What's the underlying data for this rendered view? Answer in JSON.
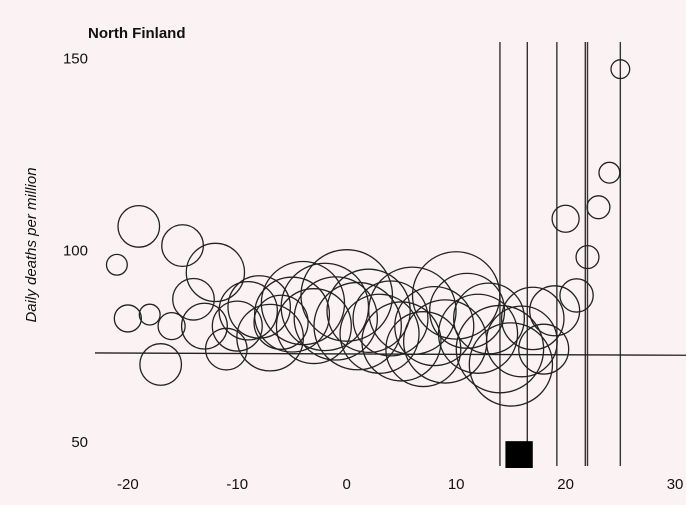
{
  "chart_data": {
    "type": "scatter",
    "title": "North Finland",
    "ylabel": "Daily deaths per million",
    "xlabel": "",
    "xlim": [
      -23,
      31
    ],
    "ylim": [
      43,
      152
    ],
    "x_ticks": [
      -20,
      -10,
      0,
      10,
      20,
      30
    ],
    "y_ticks": [
      50,
      100,
      150
    ],
    "grid": false,
    "colors": {
      "ink": "#222222",
      "background": "#fbf3f3",
      "bar": "#000000"
    },
    "baseline_y": 73,
    "vertical_lines_x": [
      14,
      16.5,
      19.2,
      21.8,
      22,
      25
    ],
    "marked_bar": {
      "x_start": 14.5,
      "x_end": 17,
      "y_start": 43,
      "y_end": 50
    },
    "points": [
      {
        "x": -21,
        "y": 96,
        "r": 1
      },
      {
        "x": -19,
        "y": 106,
        "r": 2
      },
      {
        "x": -20,
        "y": 82,
        "r": 1.3
      },
      {
        "x": -18,
        "y": 83,
        "r": 1
      },
      {
        "x": -17,
        "y": 70,
        "r": 2
      },
      {
        "x": -16,
        "y": 80,
        "r": 1.3
      },
      {
        "x": -15,
        "y": 101,
        "r": 2
      },
      {
        "x": -14,
        "y": 87,
        "r": 2
      },
      {
        "x": -13,
        "y": 80,
        "r": 2.2
      },
      {
        "x": -12,
        "y": 94,
        "r": 2.8
      },
      {
        "x": -11,
        "y": 74,
        "r": 2
      },
      {
        "x": -10,
        "y": 80,
        "r": 2.4
      },
      {
        "x": -9,
        "y": 84,
        "r": 2.8
      },
      {
        "x": -8,
        "y": 85,
        "r": 3
      },
      {
        "x": -7,
        "y": 77,
        "r": 3.2
      },
      {
        "x": -6,
        "y": 81,
        "r": 2.6
      },
      {
        "x": -5,
        "y": 83,
        "r": 3.6
      },
      {
        "x": -4,
        "y": 86,
        "r": 4
      },
      {
        "x": -3,
        "y": 80,
        "r": 3.6
      },
      {
        "x": -2,
        "y": 85,
        "r": 4.2
      },
      {
        "x": -1,
        "y": 82,
        "r": 4
      },
      {
        "x": 0,
        "y": 88,
        "r": 4.4
      },
      {
        "x": 1,
        "y": 80,
        "r": 4.2
      },
      {
        "x": 2,
        "y": 84,
        "r": 4
      },
      {
        "x": 3,
        "y": 78,
        "r": 3.8
      },
      {
        "x": 4,
        "y": 82,
        "r": 3.6
      },
      {
        "x": 5,
        "y": 76,
        "r": 3.8
      },
      {
        "x": 6,
        "y": 84,
        "r": 4.2
      },
      {
        "x": 7,
        "y": 74,
        "r": 3.6
      },
      {
        "x": 8,
        "y": 80,
        "r": 3.8
      },
      {
        "x": 9,
        "y": 76,
        "r": 4
      },
      {
        "x": 10,
        "y": 88,
        "r": 4.2
      },
      {
        "x": 11,
        "y": 84,
        "r": 3.6
      },
      {
        "x": 12,
        "y": 78,
        "r": 3.8
      },
      {
        "x": 13,
        "y": 82,
        "r": 3.4
      },
      {
        "x": 14,
        "y": 74,
        "r": 4.2
      },
      {
        "x": 15,
        "y": 70,
        "r": 4
      },
      {
        "x": 16,
        "y": 76,
        "r": 3.4
      },
      {
        "x": 17,
        "y": 82,
        "r": 3
      },
      {
        "x": 18,
        "y": 74,
        "r": 2.4
      },
      {
        "x": 19,
        "y": 84,
        "r": 2.4
      },
      {
        "x": 20,
        "y": 108,
        "r": 1.3
      },
      {
        "x": 21,
        "y": 88,
        "r": 1.6
      },
      {
        "x": 22,
        "y": 98,
        "r": 1.1
      },
      {
        "x": 23,
        "y": 111,
        "r": 1.1
      },
      {
        "x": 24,
        "y": 120,
        "r": 1
      },
      {
        "x": 25,
        "y": 147,
        "r": 0.9
      }
    ]
  }
}
